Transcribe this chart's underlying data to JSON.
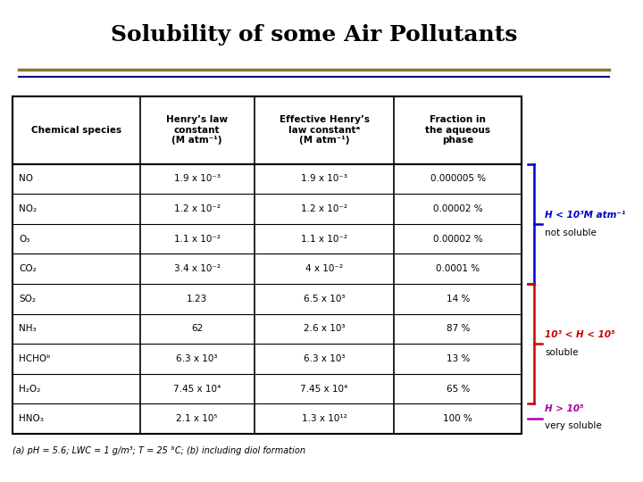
{
  "title": "Solubility of some Air Pollutants",
  "title_fontsize": 18,
  "background_color": "#ffffff",
  "separator_line1_color": "#8B7536",
  "separator_line2_color": "#000080",
  "col_headers": [
    "Chemical species",
    "Henry’s law\nconstant\n(M atm⁻¹)",
    "Effective Henry’s\nlaw constantᵃ\n(M atm⁻¹)",
    "Fraction in\nthe aqueous\nphase"
  ],
  "rows": [
    [
      "NO",
      "1.9 x 10⁻³",
      "1.9 x 10⁻³",
      "0.000005 %"
    ],
    [
      "NO₂",
      "1.2 x 10⁻²",
      "1.2 x 10⁻²",
      "0.00002 %"
    ],
    [
      "O₃",
      "1.1 x 10⁻²",
      "1.1 x 10⁻²",
      "0.00002 %"
    ],
    [
      "CO₂",
      "3.4 x 10⁻²",
      "4 x 10⁻²",
      "0.0001 %"
    ],
    [
      "SO₂",
      "1.23",
      "6.5 x 10³",
      "14 %"
    ],
    [
      "NH₃",
      "62",
      "2.6 x 10³",
      "87 %"
    ],
    [
      "HCHOᵇ",
      "6.3 x 10³",
      "6.3 x 10³",
      "13 %"
    ],
    [
      "H₂O₂",
      "7.45 x 10⁴",
      "7.45 x 10⁴",
      "65 %"
    ],
    [
      "HNO₃",
      "2.1 x 10⁵",
      "1.3 x 10¹²",
      "100 %"
    ]
  ],
  "footnote": "(a) pH = 5.6; LWC = 1 g/m³; T = 25 °C; (b) including diol formation",
  "bracket1_label_line1": "H < 10³M atm⁻¹",
  "bracket1_label_line2": "not soluble",
  "bracket1_color": "#0000cc",
  "bracket2_label_line1": "10³ < H < 10⁵",
  "bracket2_label_line2": "soluble",
  "bracket2_color": "#cc0000",
  "bracket3_label_line1": "H > 10⁵",
  "bracket3_label_line2": "very soluble",
  "bracket3_color": "#aa00aa"
}
